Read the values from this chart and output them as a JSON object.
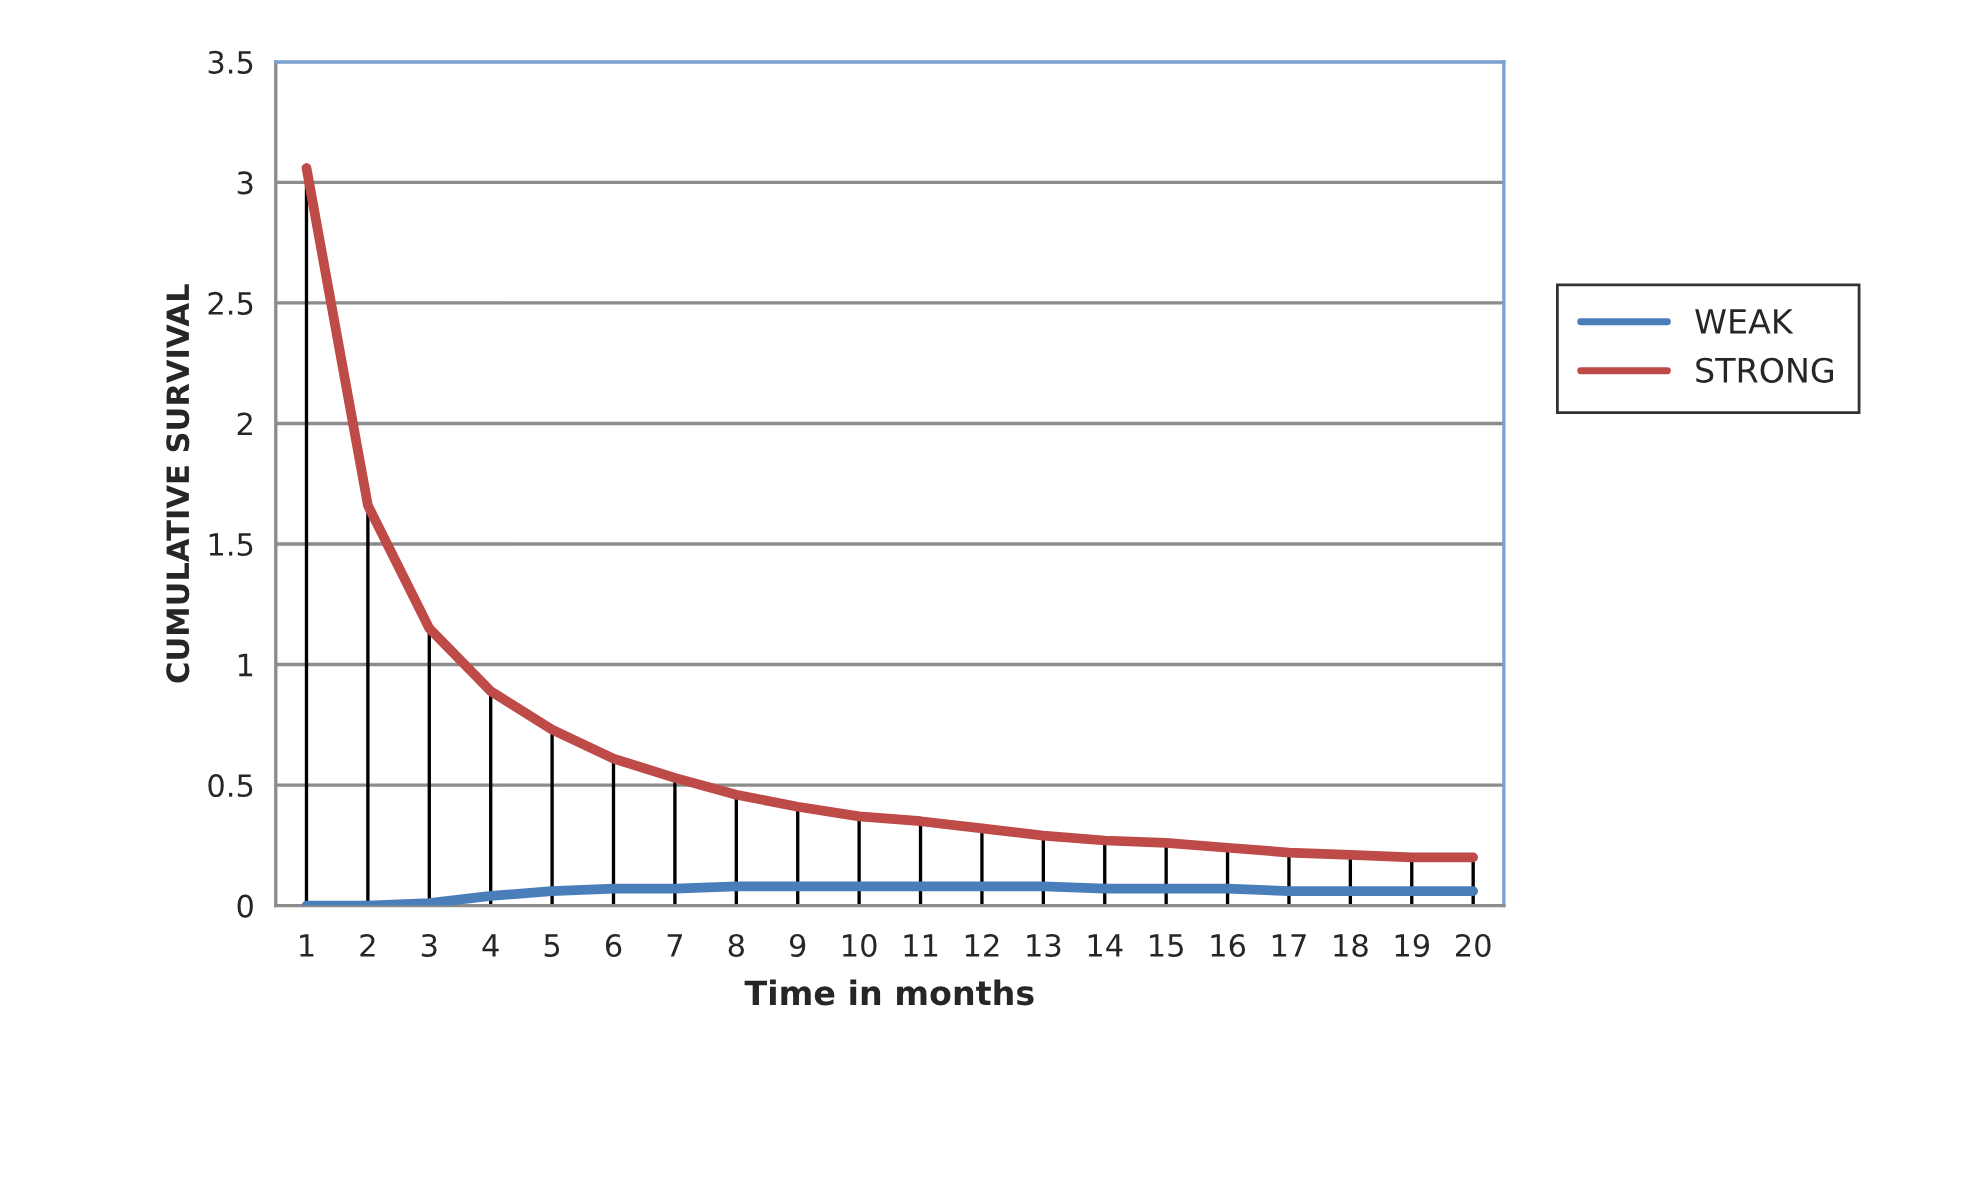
{
  "chart_data": {
    "type": "line",
    "xlabel": "Time in months",
    "ylabel": "CUMULATIVE SURVIVAL",
    "categories": [
      "1",
      "2",
      "3",
      "4",
      "5",
      "6",
      "7",
      "8",
      "9",
      "10",
      "11",
      "12",
      "13",
      "14",
      "15",
      "16",
      "17",
      "18",
      "19",
      "20"
    ],
    "series": [
      {
        "name": "WEAK",
        "color": "#4a7ebb",
        "values": [
          0,
          0,
          0.01,
          0.04,
          0.06,
          0.07,
          0.07,
          0.08,
          0.08,
          0.08,
          0.08,
          0.08,
          0.08,
          0.07,
          0.07,
          0.07,
          0.06,
          0.06,
          0.06,
          0.06
        ]
      },
      {
        "name": "STRONG",
        "color": "#be4b48",
        "values": [
          3.06,
          1.66,
          1.15,
          0.89,
          0.73,
          0.61,
          0.53,
          0.46,
          0.41,
          0.37,
          0.35,
          0.32,
          0.29,
          0.27,
          0.26,
          0.24,
          0.22,
          0.21,
          0.2,
          0.2
        ],
        "errors": [
          [
            0,
            3.06
          ],
          [
            0,
            1.66
          ],
          [
            0,
            1.15
          ],
          [
            0,
            0.89
          ],
          [
            0,
            0.73
          ],
          [
            0,
            0.61
          ],
          [
            0,
            0.53
          ],
          [
            0,
            0.46
          ],
          [
            0,
            0.41
          ],
          [
            0,
            0.37
          ],
          [
            0,
            0.35
          ],
          [
            0,
            0.32
          ],
          [
            0,
            0.29
          ],
          [
            0,
            0.27
          ],
          [
            0,
            0.26
          ],
          [
            0,
            0.24
          ],
          [
            0,
            0.22
          ],
          [
            0,
            0.21
          ],
          [
            0,
            0.2
          ],
          [
            0,
            0.2
          ]
        ]
      }
    ],
    "ylim": [
      0,
      3.5
    ],
    "yticks": [
      0,
      0.5,
      1,
      1.5,
      2,
      2.5,
      3,
      3.5
    ],
    "grid": "y",
    "legend": "right"
  }
}
